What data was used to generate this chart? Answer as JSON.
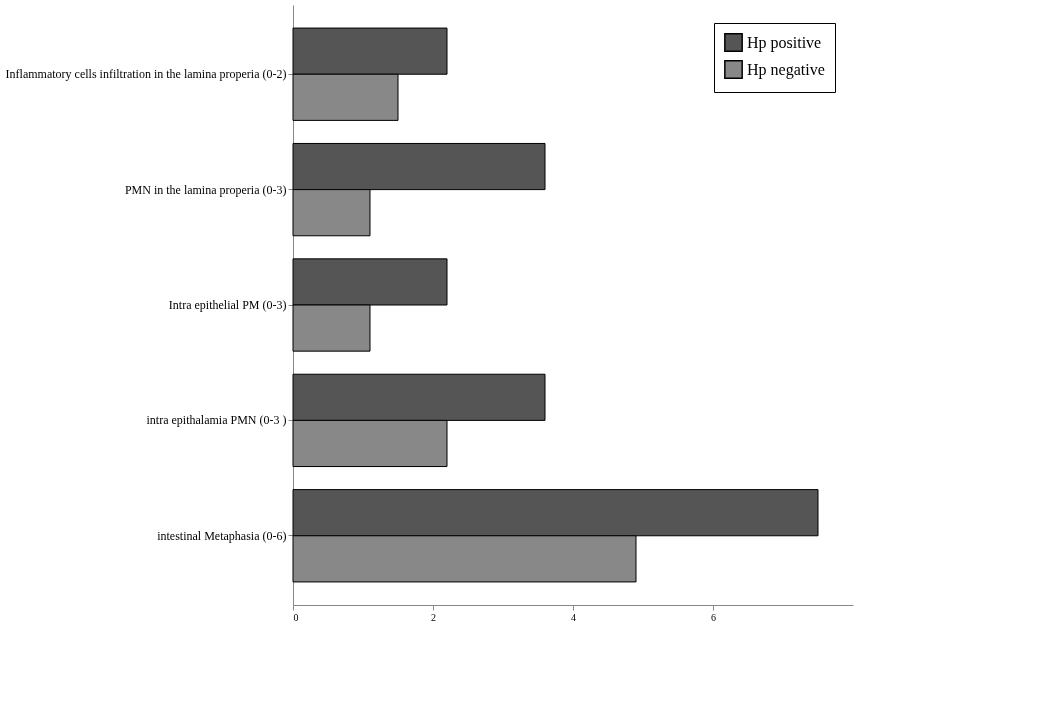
{
  "chart_data": {
    "type": "bar",
    "orientation": "horizontal",
    "categories": [
      "Inflammatory cells infiltration in the lamina properia (0-2)",
      "PMN in the lamina properia (0-3)",
      "Intra epithelial PM (0-3)",
      "intra epithalamia PMN (0-3 )",
      "intestinal Metaphasia (0-6)"
    ],
    "series": [
      {
        "name": "Hp positive",
        "color": "#555555",
        "values": [
          2.2,
          3.6,
          2.2,
          3.6,
          7.5
        ]
      },
      {
        "name": "Hp negative",
        "color": "#888888",
        "values": [
          1.5,
          1.1,
          1.1,
          2.2,
          4.9
        ]
      }
    ],
    "xlim": [
      0,
      8
    ],
    "xticks": [
      0,
      2,
      4,
      6
    ],
    "grid": false,
    "legend": "top right"
  }
}
